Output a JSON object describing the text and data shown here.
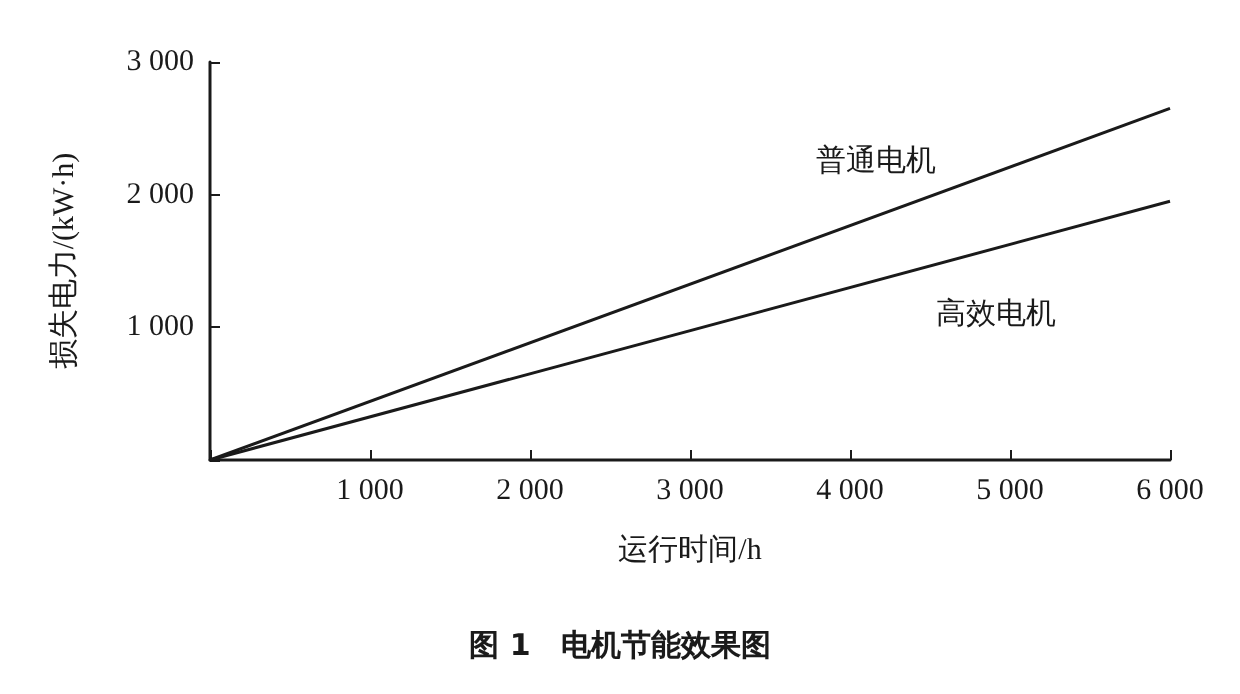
{
  "chart_data": {
    "type": "line",
    "title": "图 1　电机节能效果图",
    "xlabel": "运行时间/h",
    "ylabel": "损失电力/(kW·h)",
    "x": [
      0,
      6000
    ],
    "series": [
      {
        "name": "普通电机",
        "color": "#1a1a1a",
        "values": [
          0,
          2650
        ]
      },
      {
        "name": "高效电机",
        "color": "#1a1a1a",
        "values": [
          0,
          1950
        ]
      }
    ],
    "xlim": [
      0,
      6000
    ],
    "xticks": [
      {
        "value": 0,
        "label": null
      },
      {
        "value": 1000,
        "label": "1 000"
      },
      {
        "value": 2000,
        "label": "2 000"
      },
      {
        "value": 3000,
        "label": "3 000"
      },
      {
        "value": 4000,
        "label": "4 000"
      },
      {
        "value": 5000,
        "label": "5 000"
      },
      {
        "value": 6000,
        "label": "6 000"
      }
    ],
    "ylim": [
      0,
      3000
    ],
    "yticks": [
      {
        "value": 0,
        "label": null
      },
      {
        "value": 1000,
        "label": "1 000"
      },
      {
        "value": 2000,
        "label": "2 000"
      },
      {
        "value": 3000,
        "label": "3 000"
      }
    ],
    "grid": false,
    "legend": false,
    "marker": "none",
    "line_style": "solid"
  }
}
